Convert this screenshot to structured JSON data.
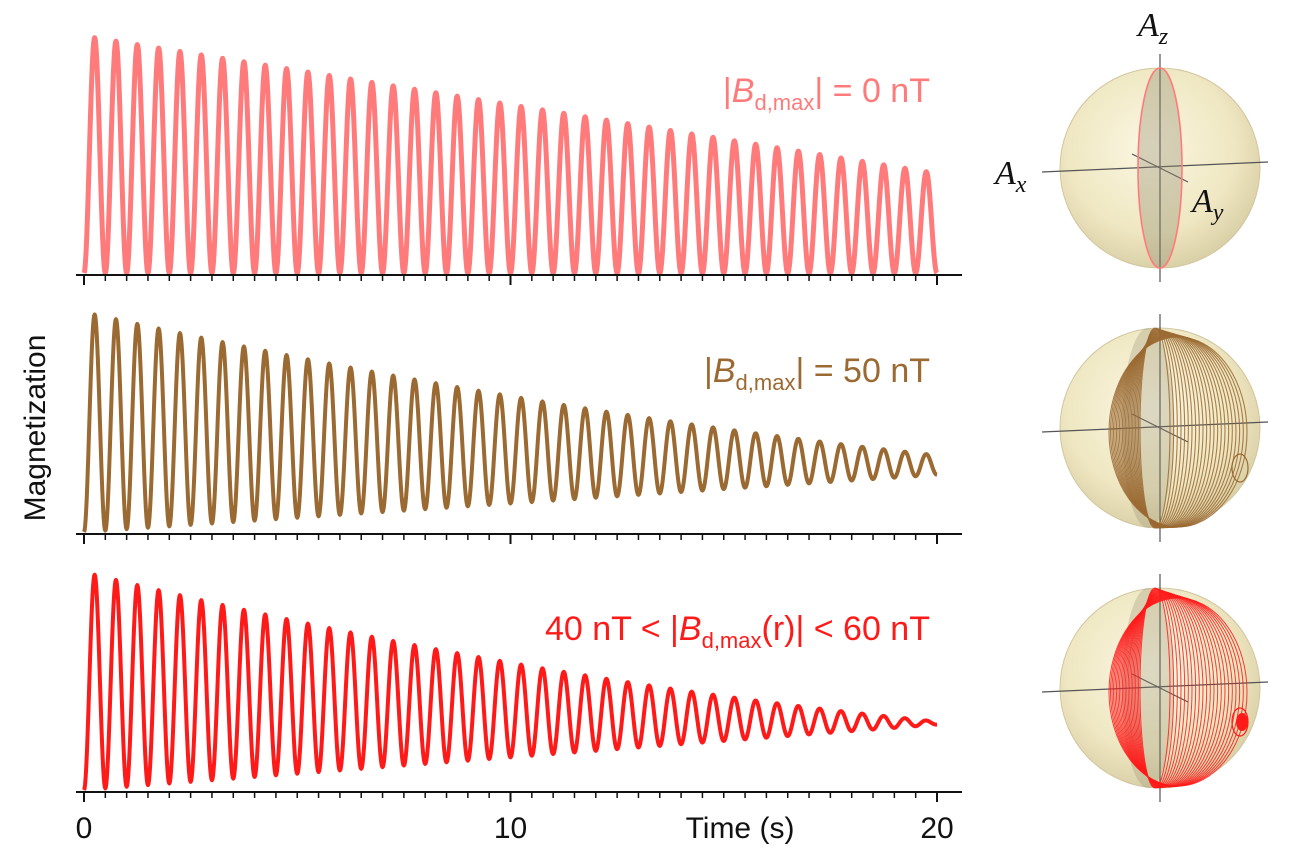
{
  "chart_data": {
    "type": "line",
    "ylabel": "Magnetization",
    "xlabel": "Time (s)",
    "xlim": [
      0,
      20
    ],
    "x_tick_labels": [
      "0",
      "10",
      "20"
    ],
    "x_tick_values": [
      0,
      10,
      20
    ],
    "minor_tick_step": 0.5,
    "frequency_hz": 2.0,
    "panels": [
      {
        "id": "zero",
        "color": "#ff7b7b",
        "label": {
          "pre": "|",
          "var": "B",
          "sub": "d,max",
          "post": "| = 0 nT"
        },
        "amplitude_start": 1.0,
        "amplitude_end": 0.42,
        "baseline_end": 0.0,
        "linewidth_end": 5
      },
      {
        "id": "fifty",
        "color": "#9b6a32",
        "label": {
          "pre": "|",
          "var": "B",
          "sub": "d,max",
          "post": "| = 50 nT"
        },
        "amplitude_start": 1.0,
        "amplitude_end": 0.12,
        "baseline_end": 0.26,
        "linewidth_end": 4
      },
      {
        "id": "range",
        "color": "#ff1a1a",
        "label": {
          "pre": "40 nT < |",
          "var": "B",
          "sub": "d,max",
          "post": "(r)| < 60 nT"
        },
        "amplitude_start": 1.0,
        "amplitude_end": 0.02,
        "baseline_end": 0.3,
        "linewidth_end": 2
      }
    ]
  },
  "spheres": {
    "axis_labels": {
      "z": "A",
      "z_sub": "z",
      "x": "A",
      "x_sub": "x",
      "y": "A",
      "y_sub": "y"
    }
  }
}
